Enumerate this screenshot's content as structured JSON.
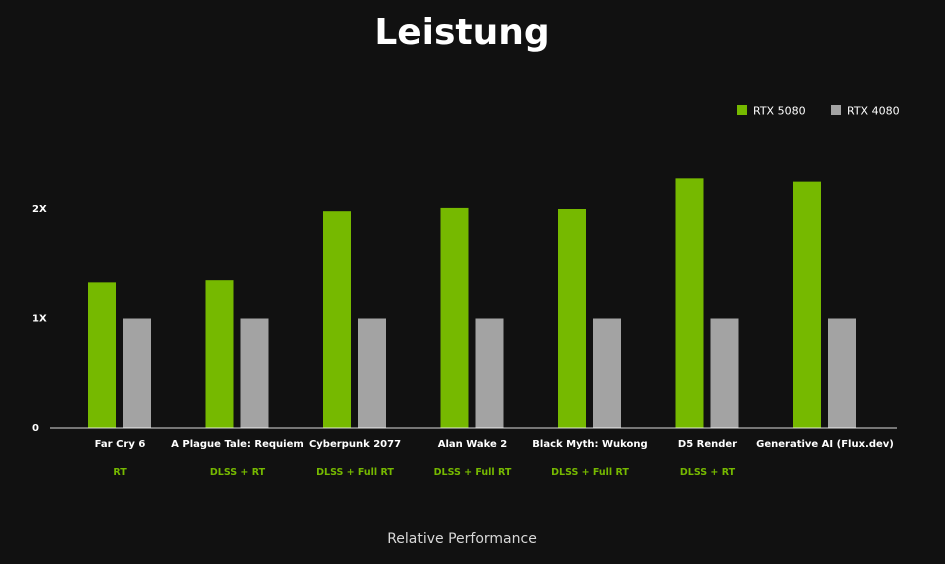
{
  "chart_data": {
    "type": "bar",
    "title": "Leistung",
    "xlabel": "Relative Performance",
    "ylabel": "",
    "ylim": [
      0,
      2.5
    ],
    "yticks": [
      {
        "value": 0,
        "label": "0"
      },
      {
        "value": 1,
        "label": "1X"
      },
      {
        "value": 2,
        "label": "2X"
      }
    ],
    "grid": false,
    "legend_position": "top-right",
    "categories": [
      "Far Cry 6",
      "A Plague Tale: Requiem",
      "Cyberpunk 2077",
      "Alan Wake 2",
      "Black Myth: Wukong",
      "D5 Render",
      "Generative AI (Flux.dev)"
    ],
    "category_notes": [
      "RT",
      "DLSS + RT",
      "DLSS + Full RT",
      "DLSS + Full RT",
      "DLSS + Full RT",
      "DLSS + RT",
      ""
    ],
    "series": [
      {
        "name": "RTX 5080",
        "color": "#76b900",
        "values": [
          1.33,
          1.35,
          1.98,
          2.01,
          2.0,
          2.28,
          2.25
        ]
      },
      {
        "name": "RTX 4080",
        "color": "#a3a3a3",
        "values": [
          1.0,
          1.0,
          1.0,
          1.0,
          1.0,
          1.0,
          1.0
        ]
      }
    ]
  }
}
